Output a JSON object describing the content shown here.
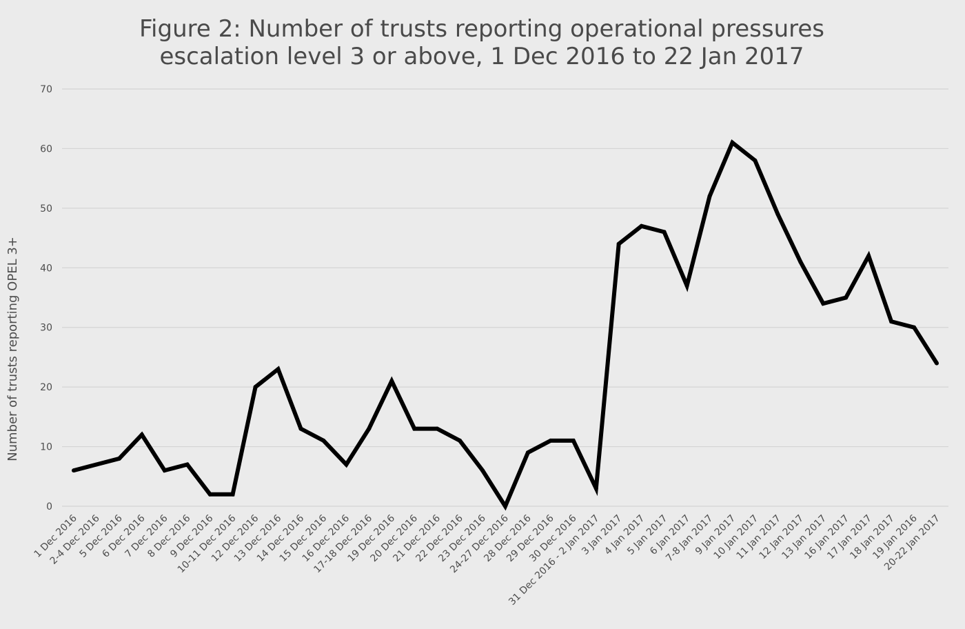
{
  "chart_data": {
    "type": "line",
    "title_lines": [
      "Figure 2: Number of trusts reporting operational pressures",
      "escalation level 3 or above, 1 Dec 2016 to 22 Jan 2017"
    ],
    "xlabel": "",
    "ylabel": "Number of trusts reporting OPEL 3+",
    "ylim": [
      0,
      70
    ],
    "yticks": [
      0,
      10,
      20,
      30,
      40,
      50,
      60,
      70
    ],
    "grid": "horizontal",
    "legend": "none",
    "line_color": "#000000",
    "background_color": "#ebebeb",
    "grid_color": "#d4d4d4",
    "categories": [
      "1 Dec 2016",
      "2-4 Dec 2016",
      "5 Dec 2016",
      "6 Dec 2016",
      "7 Dec 2016",
      "8 Dec 2016",
      "9 Dec 2016",
      "10-11 Dec 2016",
      "12 Dec 2016",
      "13 Dec 2016",
      "14 Dec 2016",
      "15 Dec 2016",
      "16 Dec 2016",
      "17-18 Dec 2016",
      "19 Dec 2016",
      "20 Dec 2016",
      "21 Dec 2016",
      "22 Dec 2016",
      "23 Dec 2016",
      "24-27 Dec 2016",
      "28 Dec 2016",
      "29 Dec 2016",
      "30 Dec 2016",
      "31 Dec 2016 - 2 Jan 2017",
      "3 Jan 2017",
      "4 Jan 2017",
      "5 Jan 2017",
      "6 Jan 2017",
      "7-8 Jan 2017",
      "9 Jan 2017",
      "10 Jan 2017",
      "11 Jan 2017",
      "12 Jan 2017",
      "13 Jan 2017",
      "16 Jan 2017",
      "17 Jan 2017",
      "18 Jan 2017",
      "19 Jan 2016",
      "20-22 Jan 2017"
    ],
    "series": [
      {
        "values": [
          6,
          7,
          8,
          12,
          6,
          7,
          2,
          2,
          20,
          23,
          13,
          11,
          7,
          13,
          21,
          13,
          13,
          11,
          6,
          0,
          9,
          11,
          11,
          3,
          44,
          47,
          46,
          37,
          52,
          61,
          58,
          49,
          41,
          34,
          35,
          42,
          31,
          30,
          24
        ]
      }
    ]
  }
}
